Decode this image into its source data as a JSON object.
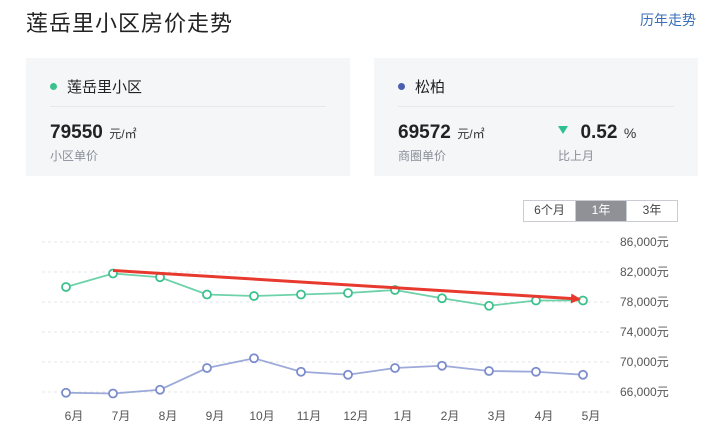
{
  "header": {
    "title": "莲岳里小区房价走势",
    "history_link": "历年走势"
  },
  "cards": {
    "community": {
      "name": "莲岳里小区",
      "price": "79550",
      "unit": "元/㎡",
      "label": "小区单价",
      "dot_color": "#3cc18c"
    },
    "district": {
      "name": "松柏",
      "price": "69572",
      "unit": "元/㎡",
      "label": "商圈单价",
      "dot_color": "#4a5fb0",
      "change_value": "0.52",
      "change_unit": "%",
      "change_label": "比上月",
      "change_direction": "down",
      "change_color": "#2fc08f"
    }
  },
  "period_tabs": [
    {
      "label": "6个月",
      "active": false
    },
    {
      "label": "1年",
      "active": true
    },
    {
      "label": "3年",
      "active": false
    }
  ],
  "chart_data": {
    "type": "line",
    "categories": [
      "6月",
      "7月",
      "8月",
      "9月",
      "10月",
      "11月",
      "12月",
      "1月",
      "2月",
      "3月",
      "4月",
      "5月"
    ],
    "y_ticks": [
      "86,000元",
      "82,000元",
      "78,000元",
      "74,000元",
      "70,000元",
      "66,000元"
    ],
    "y_tick_values": [
      86000,
      82000,
      78000,
      74000,
      70000,
      66000
    ],
    "ylim": [
      64000,
      88000
    ],
    "grid": "horizontal dashed",
    "series": [
      {
        "name": "莲岳里小区",
        "color": "#3cc18c",
        "values": [
          80000,
          81800,
          81300,
          79000,
          78800,
          79000,
          79200,
          79600,
          78500,
          77500,
          78200,
          78200
        ]
      },
      {
        "name": "松柏",
        "color": "#7b8ccc",
        "values": [
          65900,
          65800,
          66300,
          69200,
          70500,
          68700,
          68300,
          69200,
          69500,
          68800,
          68700,
          68300
        ]
      }
    ],
    "annotation": {
      "type": "trend-arrow",
      "color": "#e8392e",
      "from_category": "7月",
      "from_value": 82200,
      "to_category": "5月",
      "to_value": 78400
    }
  }
}
